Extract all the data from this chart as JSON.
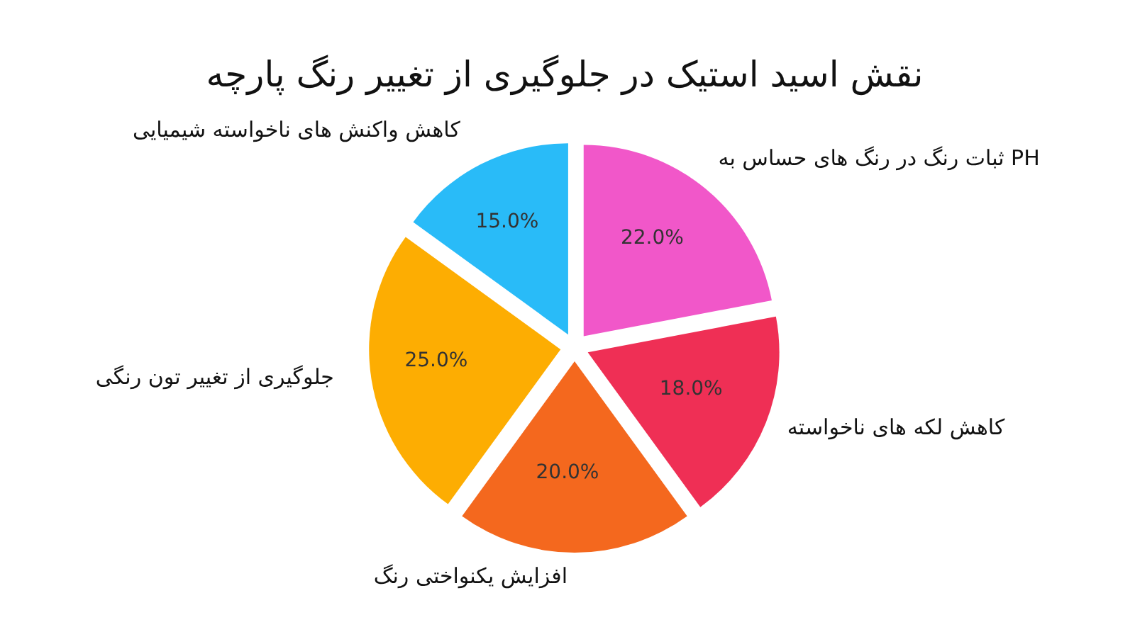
{
  "chart_data": {
    "type": "pie",
    "title": "نقش اسید استیک در جلوگیری از تغییر رنگ پارچه",
    "categories": [
      "کاهش واکنش های ناخواسته شیمیایی",
      "جلوگیری از تغییر تون رنگی",
      "افزایش یکنواختی رنگ",
      "کاهش لکه های ناخواسته",
      "ثبات رنگ در رنگ های حساس به PH"
    ],
    "values": [
      15,
      25,
      20,
      18,
      22
    ],
    "value_labels": [
      "15.0%",
      "25.0%",
      "20.0%",
      "18.0%",
      "22.0%"
    ],
    "colors": [
      "#29bbf8",
      "#fdad02",
      "#f4681e",
      "#ef2f55",
      "#f157c9"
    ]
  }
}
